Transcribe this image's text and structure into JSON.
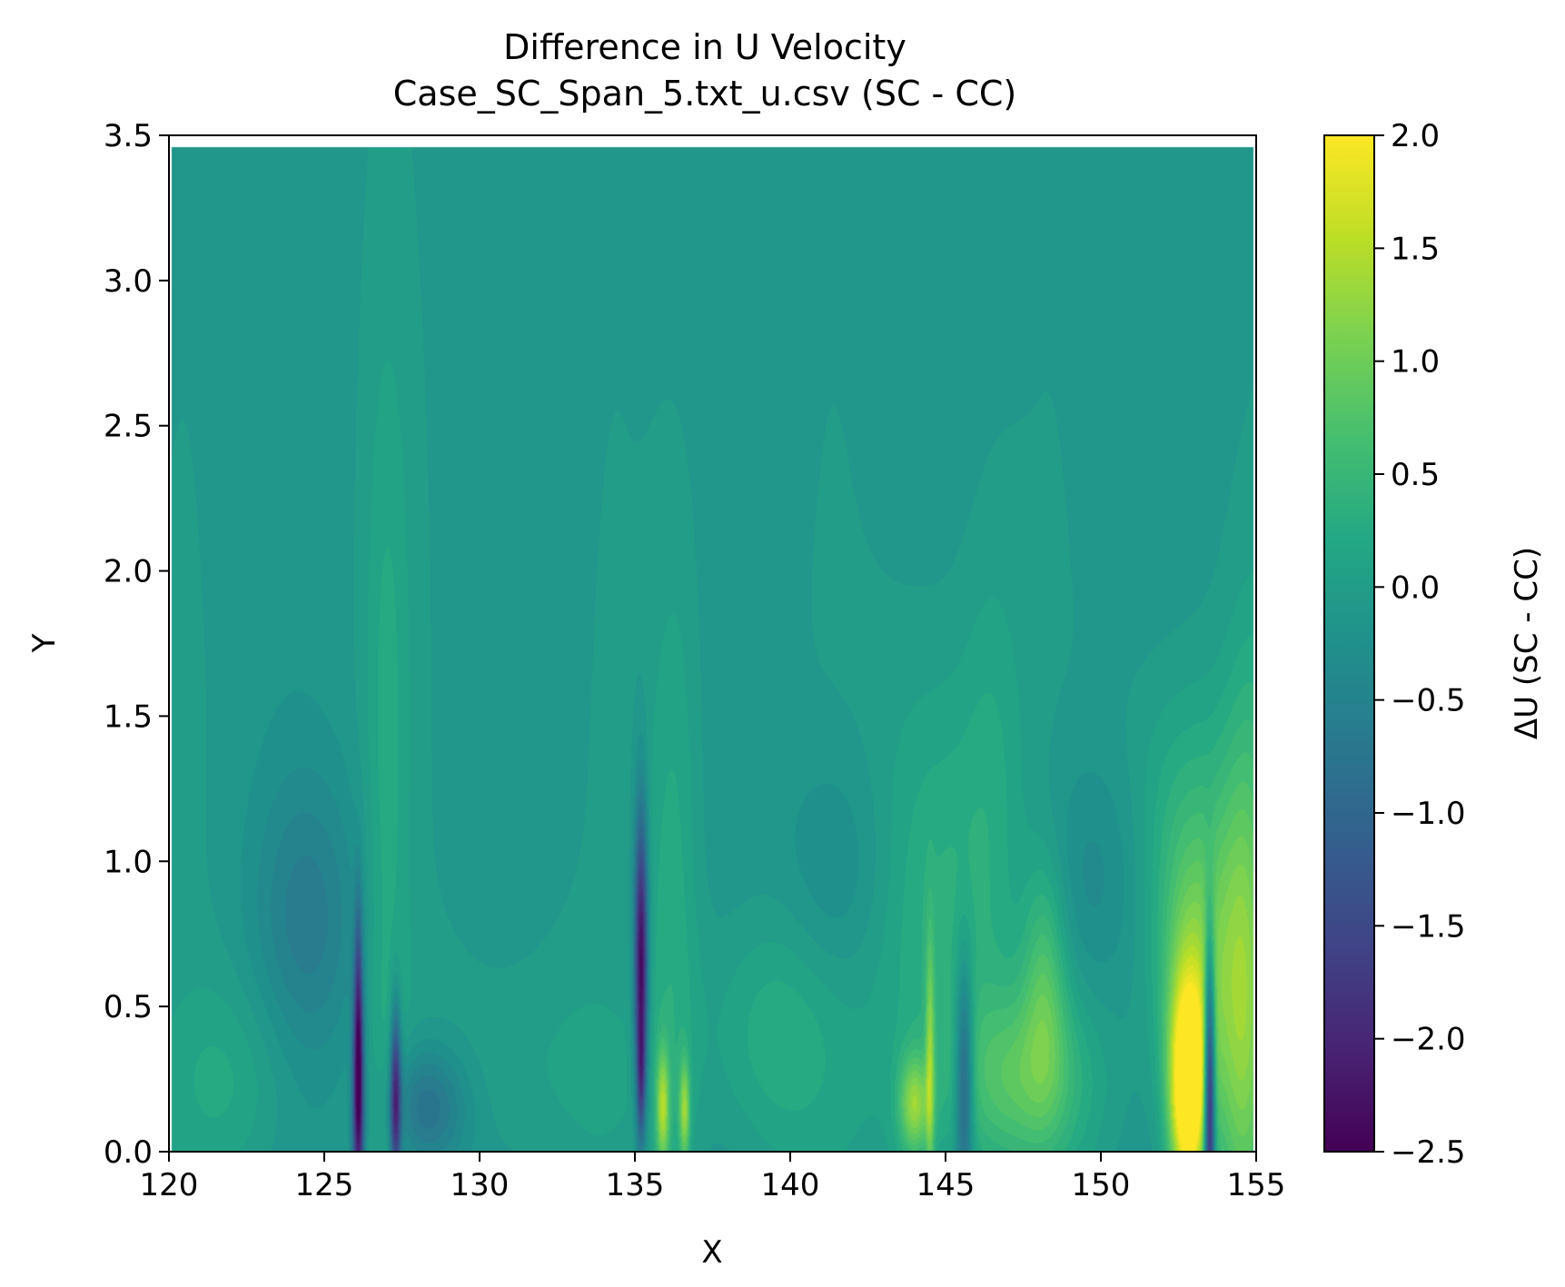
{
  "chart_data": {
    "type": "heatmap",
    "title": "Difference in U Velocity",
    "subtitle": "Case_SC_Span_5.txt_u.csv (SC - CC)",
    "xlabel": "X",
    "ylabel": "Y",
    "xlim": [
      120,
      155
    ],
    "ylim": [
      0.0,
      3.5
    ],
    "x_ticks": [
      "120",
      "125",
      "130",
      "135",
      "140",
      "145",
      "150",
      "155"
    ],
    "y_ticks": [
      "0.0",
      "0.5",
      "1.0",
      "1.5",
      "2.0",
      "2.5",
      "3.0",
      "3.5"
    ],
    "data_extent": {
      "x": [
        120.1,
        154.9
      ],
      "y": [
        0.0,
        3.46
      ]
    },
    "colorbar": {
      "label": "ΔU (SC - CC)",
      "range": [
        -2.5,
        2.0
      ],
      "ticks": [
        "−2.5",
        "−2.0",
        "−1.5",
        "−1.0",
        "−0.5",
        "0.0",
        "0.5",
        "1.0",
        "1.5",
        "2.0"
      ],
      "colormap": "viridis"
    },
    "background_value": -0.1,
    "features": [
      {
        "x": 126.1,
        "y": 0.18,
        "sx": 0.13,
        "sy": 0.28,
        "value": -2.3
      },
      {
        "x": 126.1,
        "y": 0.55,
        "sx": 0.09,
        "sy": 0.25,
        "value": -0.9
      },
      {
        "x": 127.3,
        "y": 0.18,
        "sx": 0.12,
        "sy": 0.22,
        "value": -1.9
      },
      {
        "x": 128.3,
        "y": 0.15,
        "sx": 0.9,
        "sy": 0.15,
        "value": -0.8
      },
      {
        "x": 124.5,
        "y": 0.8,
        "sx": 1.2,
        "sy": 0.35,
        "value": -0.5
      },
      {
        "x": 127.0,
        "y": 1.0,
        "sx": 0.5,
        "sy": 1.2,
        "value": 0.3
      },
      {
        "x": 127.2,
        "y": 2.0,
        "sx": 0.6,
        "sy": 0.6,
        "value": 0.05
      },
      {
        "x": 122.0,
        "y": 0.25,
        "sx": 1.5,
        "sy": 0.25,
        "value": 0.3
      },
      {
        "x": 131.5,
        "y": 0.3,
        "sx": 2.5,
        "sy": 0.3,
        "value": 0.2
      },
      {
        "x": 135.2,
        "y": 0.65,
        "sx": 0.15,
        "sy": 0.35,
        "value": -2.4
      },
      {
        "x": 135.2,
        "y": 0.25,
        "sx": 0.09,
        "sy": 0.15,
        "value": -0.9
      },
      {
        "x": 135.9,
        "y": 0.15,
        "sx": 0.15,
        "sy": 0.14,
        "value": 1.3
      },
      {
        "x": 136.6,
        "y": 0.14,
        "sx": 0.12,
        "sy": 0.12,
        "value": 1.2
      },
      {
        "x": 136.2,
        "y": 0.7,
        "sx": 0.6,
        "sy": 0.8,
        "value": 0.35
      },
      {
        "x": 136.5,
        "y": 1.8,
        "sx": 0.5,
        "sy": 0.6,
        "value": 0.05
      },
      {
        "x": 139.5,
        "y": 0.4,
        "sx": 1.6,
        "sy": 0.3,
        "value": 0.4
      },
      {
        "x": 141.5,
        "y": 0.95,
        "sx": 1.2,
        "sy": 0.3,
        "value": -0.3
      },
      {
        "x": 144.0,
        "y": 0.16,
        "sx": 0.35,
        "sy": 0.12,
        "value": 1.2
      },
      {
        "x": 144.5,
        "y": 0.3,
        "sx": 0.1,
        "sy": 0.3,
        "value": 1.0
      },
      {
        "x": 145.6,
        "y": 0.25,
        "sx": 0.2,
        "sy": 0.28,
        "value": -1.3
      },
      {
        "x": 144.8,
        "y": 0.8,
        "sx": 1.5,
        "sy": 0.6,
        "value": 0.5
      },
      {
        "x": 147.5,
        "y": 0.25,
        "sx": 1.5,
        "sy": 0.22,
        "value": 0.8
      },
      {
        "x": 146.5,
        "y": 1.3,
        "sx": 0.7,
        "sy": 0.6,
        "value": 0.2
      },
      {
        "x": 150.0,
        "y": 0.95,
        "sx": 1.5,
        "sy": 0.3,
        "value": -0.35
      },
      {
        "x": 152.8,
        "y": 0.2,
        "sx": 0.4,
        "sy": 0.25,
        "value": 2.6
      },
      {
        "x": 153.0,
        "y": 0.5,
        "sx": 0.7,
        "sy": 0.35,
        "value": 1.0
      },
      {
        "x": 153.5,
        "y": 0.2,
        "sx": 0.12,
        "sy": 0.35,
        "value": -2.8
      },
      {
        "x": 154.6,
        "y": 0.45,
        "sx": 0.6,
        "sy": 0.55,
        "value": 1.2
      },
      {
        "x": 152.7,
        "y": 1.0,
        "sx": 1.5,
        "sy": 0.4,
        "value": 0.6
      },
      {
        "x": 148.2,
        "y": 0.6,
        "sx": 0.5,
        "sy": 0.3,
        "value": 0.7
      },
      {
        "x": 155.0,
        "y": 1.5,
        "sx": 0.6,
        "sy": 0.4,
        "value": 0.2
      }
    ]
  }
}
